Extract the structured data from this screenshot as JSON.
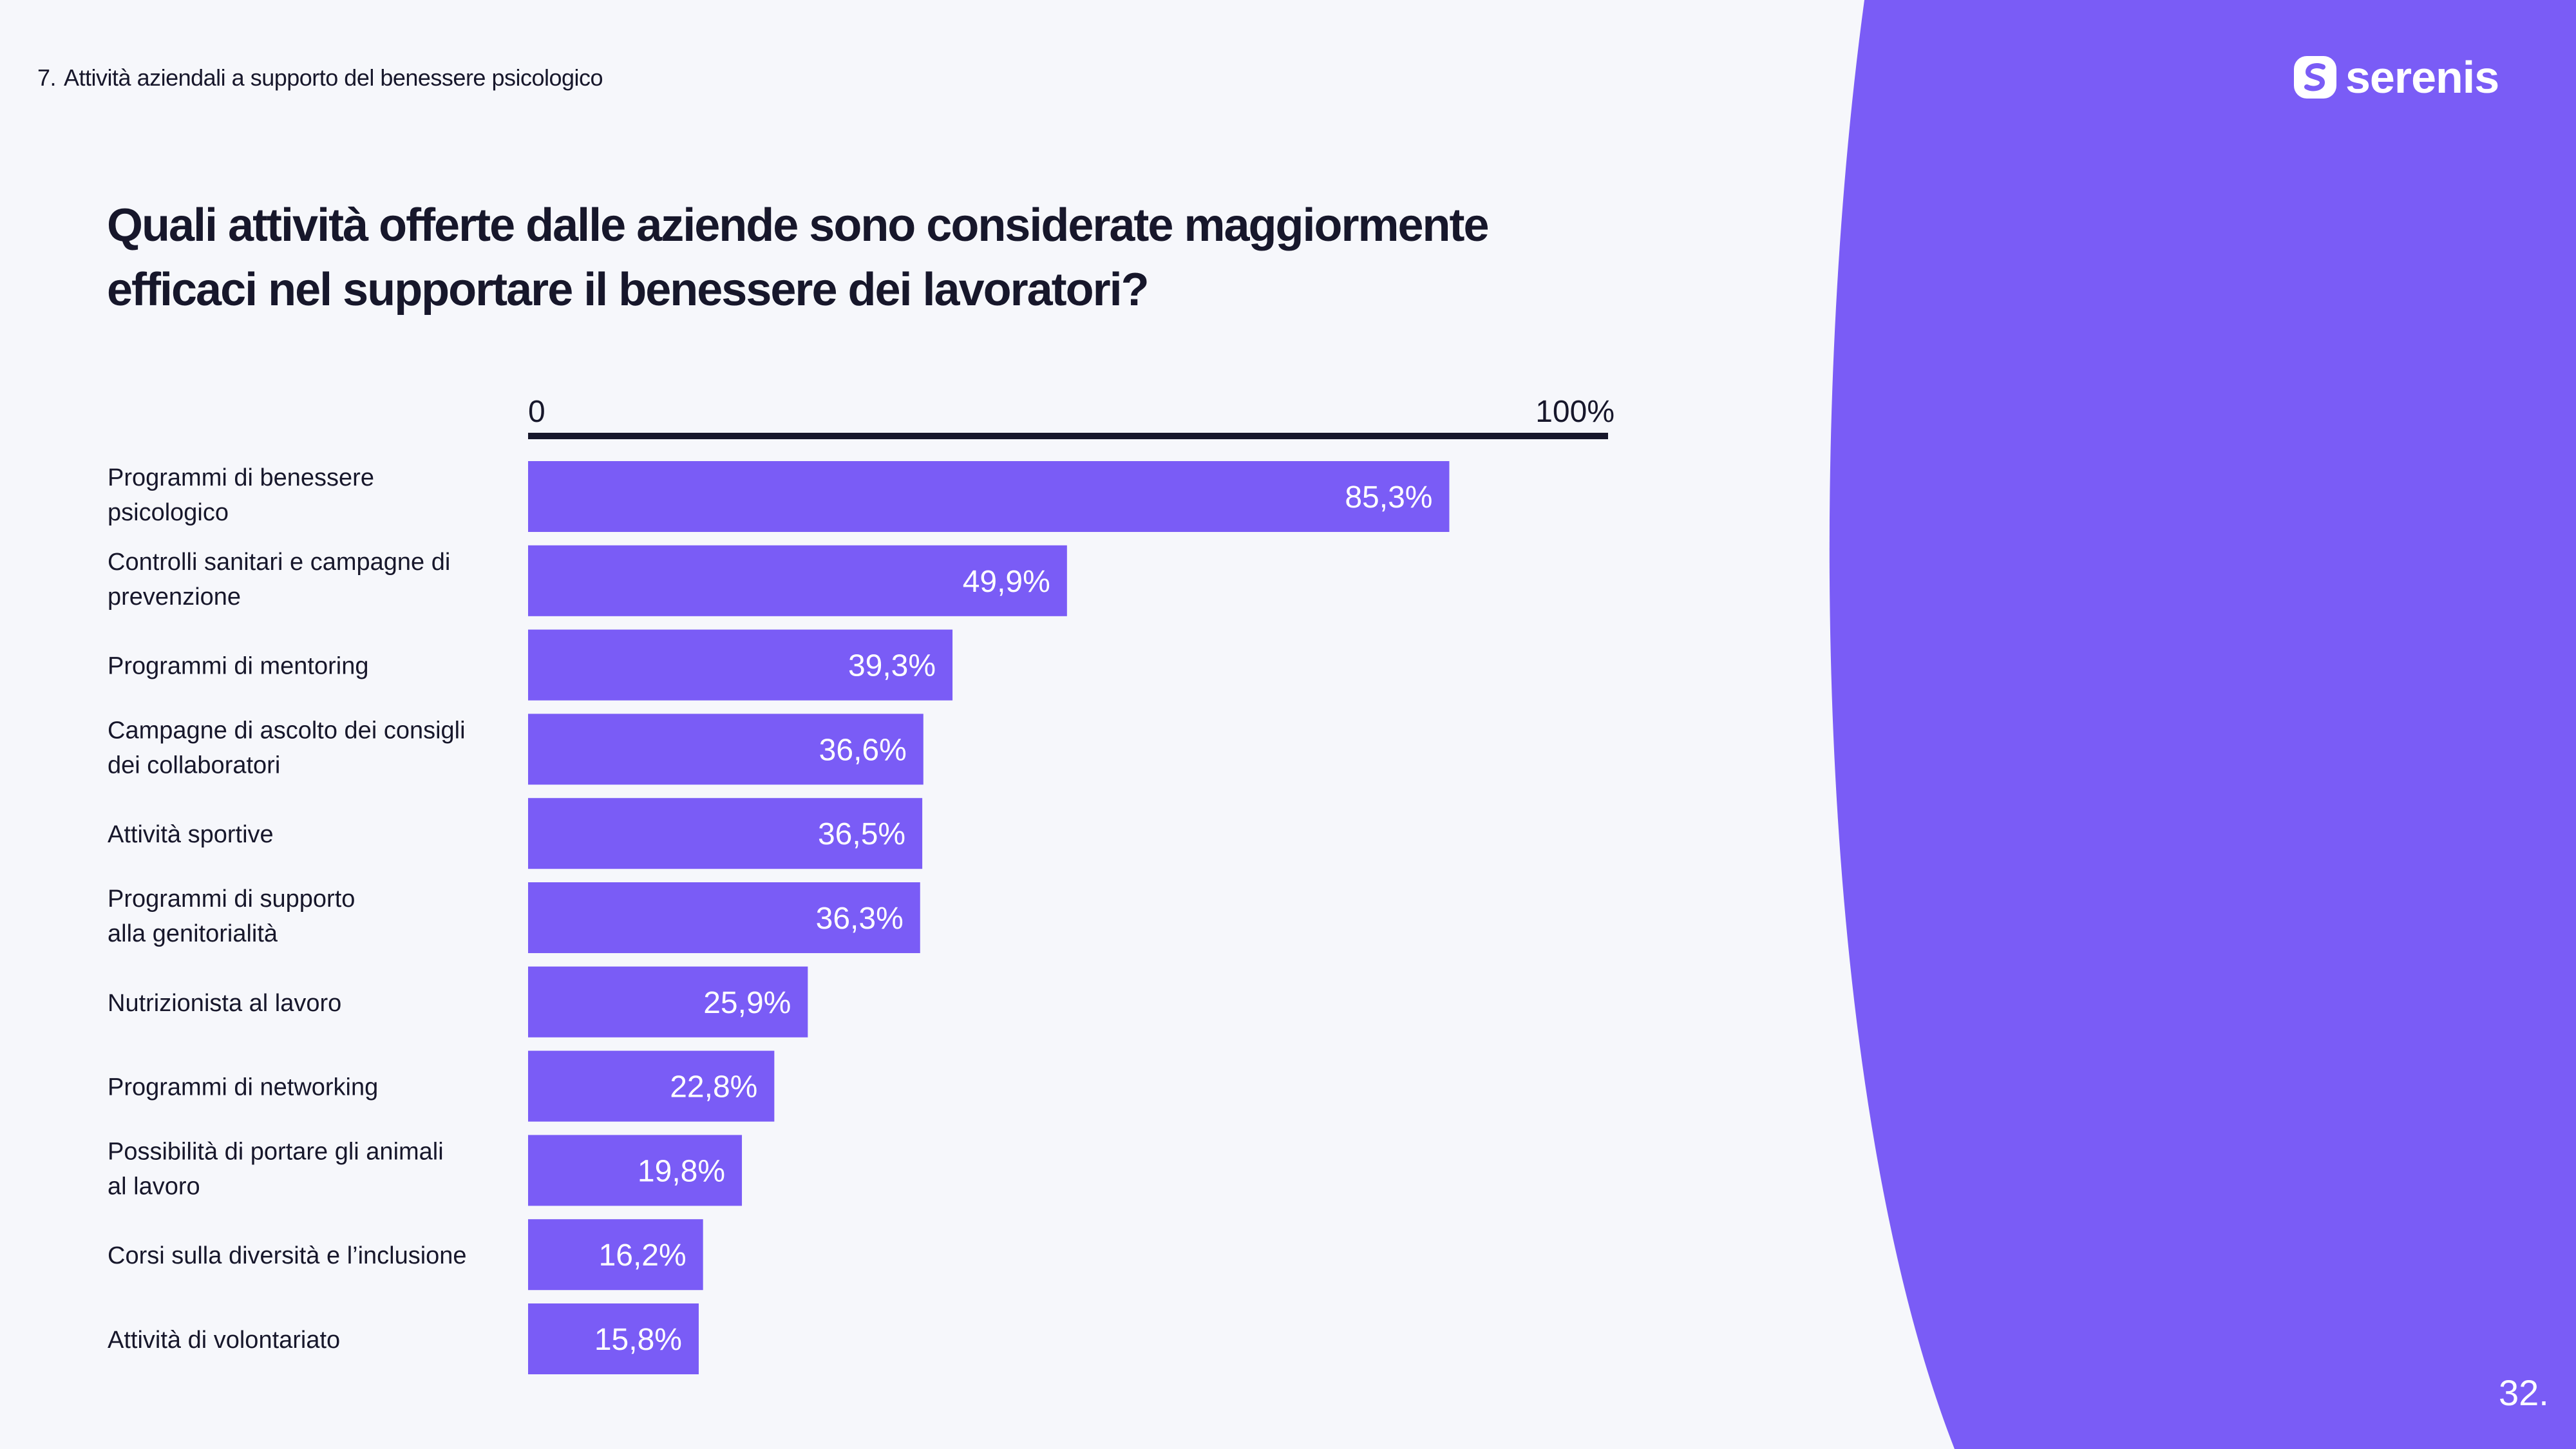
{
  "header": {
    "section_number": "7.",
    "section_title": "Attività aziendali a supporto del benessere psicologico"
  },
  "brand": {
    "name": "serenis",
    "logo_icon": "serenis-logo-icon",
    "accent_color": "#7a5cf6",
    "text_color": "#17172b"
  },
  "page_number": "32.",
  "chart_data": {
    "type": "bar",
    "orientation": "horizontal",
    "title": "Quali attività offerte dalle aziende sono considerate maggiormente efficaci nel supportare il benessere dei lavoratori?",
    "xlim": [
      0,
      100
    ],
    "axis_ticks": [
      "0",
      "100%"
    ],
    "grid": false,
    "categories": [
      [
        "Programmi di benessere",
        "psicologico"
      ],
      [
        "Controlli sanitari e campagne di",
        "prevenzione"
      ],
      [
        "Programmi di mentoring"
      ],
      [
        "Campagne di ascolto dei consigli",
        "dei collaboratori"
      ],
      [
        "Attività sportive"
      ],
      [
        "Programmi di supporto",
        "alla genitorialità"
      ],
      [
        "Nutrizionista al lavoro"
      ],
      [
        "Programmi di networking"
      ],
      [
        "Possibilità di portare gli animali",
        "al lavoro"
      ],
      [
        "Corsi sulla diversità e l’inclusione"
      ],
      [
        "Attività di volontariato"
      ]
    ],
    "values": [
      85.3,
      49.9,
      39.3,
      36.6,
      36.5,
      36.3,
      25.9,
      22.8,
      19.8,
      16.2,
      15.8
    ],
    "value_labels": [
      "85,3%",
      "49,9%",
      "39,3%",
      "36,6%",
      "36,5%",
      "36,3%",
      "25,9%",
      "22,8%",
      "19,8%",
      "16,2%",
      "15,8%"
    ],
    "bar_color": "#7a5cf6"
  }
}
